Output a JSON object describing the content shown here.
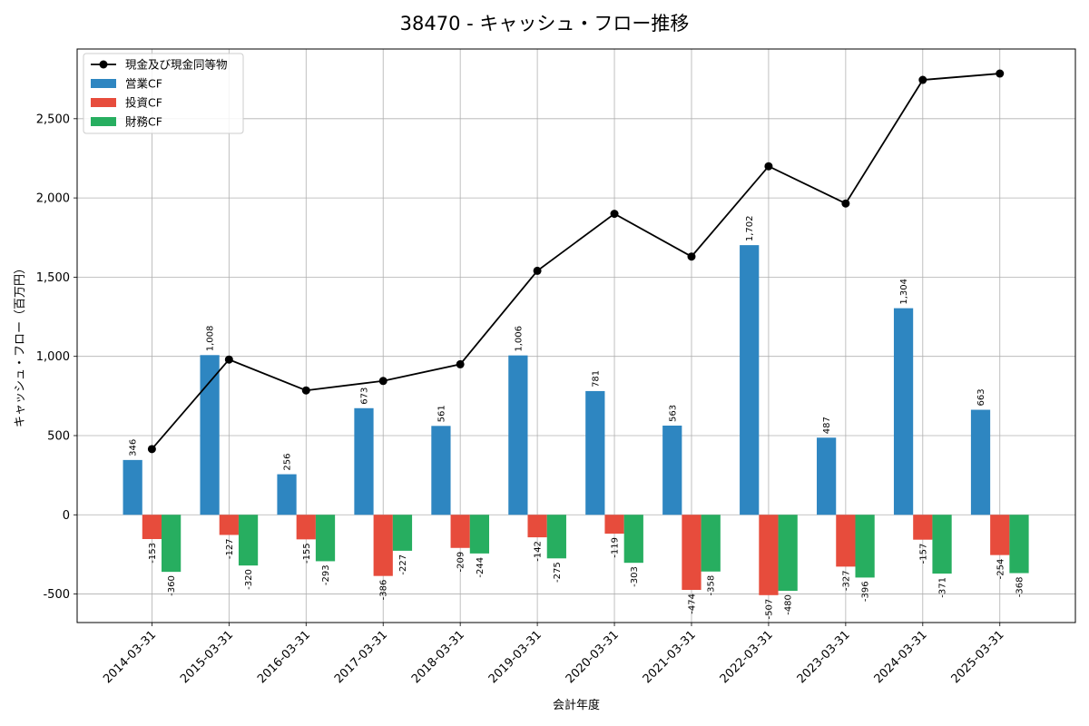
{
  "chart_data": {
    "type": "bar",
    "title": "38470 - キャッシュ・フロー推移",
    "xlabel": "会計年度",
    "ylabel": "キャッシュ・フロー（百万円）",
    "ylim": [
      -680,
      2940
    ],
    "yticks": [
      -500,
      0,
      500,
      1000,
      1500,
      2000,
      2500
    ],
    "ytick_labels": [
      "-500",
      "0",
      "500",
      "1,000",
      "1,500",
      "2,000",
      "2,500"
    ],
    "grid": true,
    "legend_position": "top-left",
    "categories": [
      "2014-03-31",
      "2015-03-31",
      "2016-03-31",
      "2017-03-31",
      "2018-03-31",
      "2019-03-31",
      "2020-03-31",
      "2021-03-31",
      "2022-03-31",
      "2023-03-31",
      "2024-03-31",
      "2025-03-31"
    ],
    "series": [
      {
        "name": "営業CF",
        "type": "bar",
        "color": "#2e86c1",
        "values": [
          346,
          1008,
          256,
          673,
          561,
          1006,
          781,
          563,
          1702,
          487,
          1304,
          663
        ],
        "labels": [
          "346",
          "1,008",
          "256",
          "673",
          "561",
          "1,006",
          "781",
          "563",
          "1,702",
          "487",
          "1,304",
          "663"
        ]
      },
      {
        "name": "投資CF",
        "type": "bar",
        "color": "#e74c3c",
        "values": [
          -153,
          -127,
          -155,
          -386,
          -209,
          -142,
          -119,
          -474,
          -507,
          -327,
          -157,
          -254
        ],
        "labels": [
          "-153",
          "-127",
          "-155",
          "-386",
          "-209",
          "-142",
          "-119",
          "-474",
          "-507",
          "-327",
          "-157",
          "-254"
        ]
      },
      {
        "name": "財務CF",
        "type": "bar",
        "color": "#27ae60",
        "values": [
          -360,
          -320,
          -293,
          -227,
          -244,
          -275,
          -303,
          -358,
          -480,
          -396,
          -371,
          -368
        ],
        "labels": [
          "-360",
          "-320",
          "-293",
          "-227",
          "-244",
          "-275",
          "-303",
          "-358",
          "-480",
          "-396",
          "-371",
          "-368"
        ]
      },
      {
        "name": "現金及び現金同等物",
        "type": "line",
        "color": "#000000",
        "values": [
          415,
          980,
          785,
          845,
          950,
          1540,
          1900,
          1630,
          2200,
          1965,
          2745,
          2785
        ]
      }
    ]
  }
}
